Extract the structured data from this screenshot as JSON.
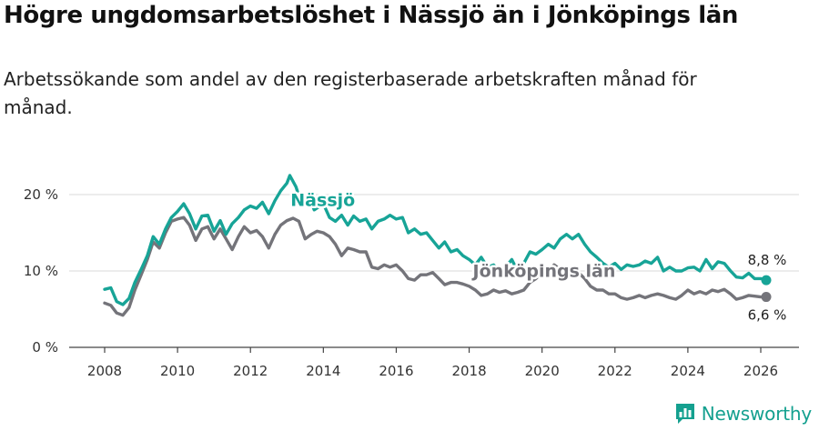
{
  "header": {
    "title": "Högre ungdomsarbetslöshet i Nässjö än i Jönköpings län",
    "subtitle": "Arbetssökande som andel av den registerbaserade arbetskraften månad för månad."
  },
  "brand": {
    "name": "Newsworthy",
    "logo_icon": "bar-chart-icon"
  },
  "chart_data": {
    "type": "line",
    "title": "Högre ungdomsarbetslöshet i Nässjö än i Jönköpings län",
    "subtitle": "Arbetssökande som andel av den registerbaserade arbetskraften månad för månad.",
    "xlabel": "",
    "ylabel": "",
    "xlim": [
      2007.3,
      2027.0
    ],
    "ylim": [
      0,
      22
    ],
    "grid": true,
    "x_ticks": [
      2008,
      2010,
      2012,
      2014,
      2016,
      2018,
      2020,
      2022,
      2024,
      2026
    ],
    "x_tick_labels": [
      "2008",
      "2010",
      "2012",
      "2014",
      "2016",
      "2018",
      "2020",
      "2022",
      "2024",
      "2026"
    ],
    "y_ticks": [
      0,
      10,
      20
    ],
    "y_tick_labels": [
      "0 %",
      "10 %",
      "20 %"
    ],
    "series": [
      {
        "name": "Nässjö",
        "color": "#17a497",
        "end_label": "8,8 %",
        "points": [
          [
            2008.0,
            7.6
          ],
          [
            2008.17,
            7.8
          ],
          [
            2008.33,
            6.0
          ],
          [
            2008.5,
            5.6
          ],
          [
            2008.67,
            6.4
          ],
          [
            2008.83,
            8.5
          ],
          [
            2009.0,
            10.2
          ],
          [
            2009.17,
            12.0
          ],
          [
            2009.33,
            14.5
          ],
          [
            2009.5,
            13.5
          ],
          [
            2009.67,
            15.5
          ],
          [
            2009.83,
            17.0
          ],
          [
            2010.0,
            17.8
          ],
          [
            2010.17,
            18.8
          ],
          [
            2010.33,
            17.5
          ],
          [
            2010.5,
            15.5
          ],
          [
            2010.67,
            17.2
          ],
          [
            2010.83,
            17.3
          ],
          [
            2011.0,
            15.2
          ],
          [
            2011.17,
            16.6
          ],
          [
            2011.33,
            14.8
          ],
          [
            2011.5,
            16.2
          ],
          [
            2011.67,
            17.0
          ],
          [
            2011.83,
            18.0
          ],
          [
            2012.0,
            18.5
          ],
          [
            2012.17,
            18.2
          ],
          [
            2012.33,
            19.0
          ],
          [
            2012.5,
            17.5
          ],
          [
            2012.67,
            19.2
          ],
          [
            2012.83,
            20.5
          ],
          [
            2013.0,
            21.5
          ],
          [
            2013.08,
            22.5
          ],
          [
            2013.25,
            21.0
          ],
          [
            2013.42,
            18.5
          ],
          [
            2013.58,
            20.0
          ],
          [
            2013.75,
            18.0
          ],
          [
            2014.0,
            18.8
          ],
          [
            2014.17,
            17.0
          ],
          [
            2014.33,
            16.5
          ],
          [
            2014.5,
            17.3
          ],
          [
            2014.67,
            16.0
          ],
          [
            2014.83,
            17.2
          ],
          [
            2015.0,
            16.5
          ],
          [
            2015.17,
            16.8
          ],
          [
            2015.33,
            15.5
          ],
          [
            2015.5,
            16.5
          ],
          [
            2015.67,
            16.8
          ],
          [
            2015.83,
            17.3
          ],
          [
            2016.0,
            16.8
          ],
          [
            2016.17,
            17.0
          ],
          [
            2016.33,
            15.0
          ],
          [
            2016.5,
            15.5
          ],
          [
            2016.67,
            14.8
          ],
          [
            2016.83,
            15.0
          ],
          [
            2017.0,
            14.0
          ],
          [
            2017.17,
            13.0
          ],
          [
            2017.33,
            13.8
          ],
          [
            2017.5,
            12.5
          ],
          [
            2017.67,
            12.8
          ],
          [
            2017.83,
            12.0
          ],
          [
            2018.0,
            11.5
          ],
          [
            2018.17,
            10.8
          ],
          [
            2018.33,
            11.8
          ],
          [
            2018.5,
            10.5
          ],
          [
            2018.67,
            10.8
          ],
          [
            2018.83,
            10.0
          ],
          [
            2019.0,
            10.5
          ],
          [
            2019.17,
            11.5
          ],
          [
            2019.33,
            10.0
          ],
          [
            2019.5,
            11.0
          ],
          [
            2019.67,
            12.5
          ],
          [
            2019.83,
            12.2
          ],
          [
            2020.0,
            12.8
          ],
          [
            2020.17,
            13.5
          ],
          [
            2020.33,
            13.0
          ],
          [
            2020.5,
            14.2
          ],
          [
            2020.67,
            14.8
          ],
          [
            2020.83,
            14.2
          ],
          [
            2021.0,
            14.8
          ],
          [
            2021.17,
            13.5
          ],
          [
            2021.33,
            12.5
          ],
          [
            2021.5,
            11.8
          ],
          [
            2021.67,
            11.0
          ],
          [
            2021.83,
            10.5
          ],
          [
            2022.0,
            11.0
          ],
          [
            2022.17,
            10.2
          ],
          [
            2022.33,
            10.8
          ],
          [
            2022.5,
            10.6
          ],
          [
            2022.67,
            10.8
          ],
          [
            2022.83,
            11.3
          ],
          [
            2023.0,
            11.0
          ],
          [
            2023.17,
            11.8
          ],
          [
            2023.33,
            10.0
          ],
          [
            2023.5,
            10.5
          ],
          [
            2023.67,
            10.0
          ],
          [
            2023.83,
            10.0
          ],
          [
            2024.0,
            10.4
          ],
          [
            2024.17,
            10.5
          ],
          [
            2024.33,
            10.0
          ],
          [
            2024.5,
            11.5
          ],
          [
            2024.67,
            10.3
          ],
          [
            2024.83,
            11.2
          ],
          [
            2025.0,
            11.0
          ],
          [
            2025.17,
            10.0
          ],
          [
            2025.33,
            9.2
          ],
          [
            2025.5,
            9.1
          ],
          [
            2025.67,
            9.7
          ],
          [
            2025.83,
            9.0
          ],
          [
            2026.0,
            9.0
          ],
          [
            2026.15,
            8.8
          ]
        ]
      },
      {
        "name": "Jönköpings län",
        "color": "#74747a",
        "end_label": "6,6 %",
        "points": [
          [
            2008.0,
            5.8
          ],
          [
            2008.17,
            5.5
          ],
          [
            2008.33,
            4.5
          ],
          [
            2008.5,
            4.2
          ],
          [
            2008.67,
            5.2
          ],
          [
            2008.83,
            7.5
          ],
          [
            2009.0,
            9.5
          ],
          [
            2009.17,
            11.5
          ],
          [
            2009.33,
            13.8
          ],
          [
            2009.5,
            13.0
          ],
          [
            2009.67,
            15.0
          ],
          [
            2009.83,
            16.5
          ],
          [
            2010.0,
            16.8
          ],
          [
            2010.17,
            17.0
          ],
          [
            2010.33,
            16.0
          ],
          [
            2010.5,
            14.0
          ],
          [
            2010.67,
            15.5
          ],
          [
            2010.83,
            15.8
          ],
          [
            2011.0,
            14.2
          ],
          [
            2011.17,
            15.5
          ],
          [
            2011.33,
            14.2
          ],
          [
            2011.5,
            12.8
          ],
          [
            2011.67,
            14.5
          ],
          [
            2011.83,
            15.8
          ],
          [
            2012.0,
            15.0
          ],
          [
            2012.17,
            15.3
          ],
          [
            2012.33,
            14.5
          ],
          [
            2012.5,
            13.0
          ],
          [
            2012.67,
            14.8
          ],
          [
            2012.83,
            16.0
          ],
          [
            2013.0,
            16.6
          ],
          [
            2013.17,
            16.9
          ],
          [
            2013.33,
            16.5
          ],
          [
            2013.5,
            14.2
          ],
          [
            2013.67,
            14.8
          ],
          [
            2013.83,
            15.2
          ],
          [
            2014.0,
            15.0
          ],
          [
            2014.17,
            14.5
          ],
          [
            2014.33,
            13.5
          ],
          [
            2014.5,
            12.0
          ],
          [
            2014.67,
            13.0
          ],
          [
            2014.83,
            12.8
          ],
          [
            2015.0,
            12.5
          ],
          [
            2015.17,
            12.5
          ],
          [
            2015.33,
            10.5
          ],
          [
            2015.5,
            10.3
          ],
          [
            2015.67,
            10.8
          ],
          [
            2015.83,
            10.5
          ],
          [
            2016.0,
            10.8
          ],
          [
            2016.17,
            10.0
          ],
          [
            2016.33,
            9.0
          ],
          [
            2016.5,
            8.8
          ],
          [
            2016.67,
            9.5
          ],
          [
            2016.83,
            9.5
          ],
          [
            2017.0,
            9.8
          ],
          [
            2017.17,
            9.0
          ],
          [
            2017.33,
            8.2
          ],
          [
            2017.5,
            8.5
          ],
          [
            2017.67,
            8.5
          ],
          [
            2017.83,
            8.3
          ],
          [
            2018.0,
            8.0
          ],
          [
            2018.17,
            7.5
          ],
          [
            2018.33,
            6.8
          ],
          [
            2018.5,
            7.0
          ],
          [
            2018.67,
            7.5
          ],
          [
            2018.83,
            7.2
          ],
          [
            2019.0,
            7.4
          ],
          [
            2019.17,
            7.0
          ],
          [
            2019.33,
            7.2
          ],
          [
            2019.5,
            7.5
          ],
          [
            2019.67,
            8.5
          ],
          [
            2019.83,
            9.0
          ],
          [
            2020.0,
            9.8
          ],
          [
            2020.17,
            10.0
          ],
          [
            2020.33,
            10.8
          ],
          [
            2020.5,
            10.2
          ],
          [
            2020.67,
            10.0
          ],
          [
            2020.83,
            9.5
          ],
          [
            2021.0,
            9.8
          ],
          [
            2021.17,
            9.0
          ],
          [
            2021.33,
            8.0
          ],
          [
            2021.5,
            7.5
          ],
          [
            2021.67,
            7.5
          ],
          [
            2021.83,
            7.0
          ],
          [
            2022.0,
            7.0
          ],
          [
            2022.17,
            6.5
          ],
          [
            2022.33,
            6.3
          ],
          [
            2022.5,
            6.5
          ],
          [
            2022.67,
            6.8
          ],
          [
            2022.83,
            6.5
          ],
          [
            2023.0,
            6.8
          ],
          [
            2023.17,
            7.0
          ],
          [
            2023.33,
            6.8
          ],
          [
            2023.5,
            6.5
          ],
          [
            2023.67,
            6.3
          ],
          [
            2023.83,
            6.8
          ],
          [
            2024.0,
            7.5
          ],
          [
            2024.17,
            7.0
          ],
          [
            2024.33,
            7.3
          ],
          [
            2024.5,
            7.0
          ],
          [
            2024.67,
            7.5
          ],
          [
            2024.83,
            7.3
          ],
          [
            2025.0,
            7.6
          ],
          [
            2025.17,
            7.0
          ],
          [
            2025.33,
            6.3
          ],
          [
            2025.5,
            6.5
          ],
          [
            2025.67,
            6.8
          ],
          [
            2025.83,
            6.7
          ],
          [
            2026.0,
            6.6
          ],
          [
            2026.15,
            6.6
          ]
        ]
      }
    ],
    "annotations": [
      {
        "text": "Nässjö",
        "series": "Nässjö",
        "x": 2013.1,
        "y": 18.5,
        "color": "#17a497"
      },
      {
        "text": "Jönköpings län",
        "series": "Jönköpings län",
        "x": 2018.1,
        "y": 9.2,
        "color": "#74747a"
      }
    ]
  }
}
